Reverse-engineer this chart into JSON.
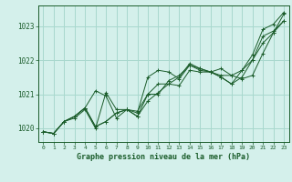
{
  "title": "Graphe pression niveau de la mer (hPa)",
  "bg_color": "#d4f0eb",
  "grid_color": "#a8d8ce",
  "line_color": "#1a5c2a",
  "xlim": [
    -0.5,
    23.5
  ],
  "ylim": [
    1019.6,
    1023.6
  ],
  "yticks": [
    1020,
    1021,
    1022,
    1023
  ],
  "xticks": [
    0,
    1,
    2,
    3,
    4,
    5,
    6,
    7,
    8,
    9,
    10,
    11,
    12,
    13,
    14,
    15,
    16,
    17,
    18,
    19,
    20,
    21,
    22,
    23
  ],
  "series": [
    [
      1019.9,
      1019.85,
      1020.2,
      1020.3,
      1020.55,
      1020.0,
      1021.05,
      1020.55,
      1020.55,
      1020.45,
      1021.5,
      1021.7,
      1021.65,
      1021.45,
      1021.85,
      1021.7,
      1021.65,
      1021.75,
      1021.55,
      1021.7,
      1022.15,
      1022.9,
      1023.05,
      1023.4
    ],
    [
      1019.9,
      1019.85,
      1020.2,
      1020.35,
      1020.6,
      1020.05,
      1020.2,
      1020.45,
      1020.55,
      1020.5,
      1021.0,
      1021.3,
      1021.3,
      1021.5,
      1021.9,
      1021.75,
      1021.65,
      1021.5,
      1021.3,
      1021.5,
      1022.0,
      1022.7,
      1022.85,
      1023.15
    ],
    [
      1019.9,
      1019.85,
      1020.2,
      1020.35,
      1020.6,
      1021.1,
      1020.95,
      1020.3,
      1020.55,
      1020.35,
      1021.0,
      1021.0,
      1021.4,
      1021.55,
      1021.85,
      1021.75,
      1021.65,
      1021.5,
      1021.3,
      1021.7,
      1022.0,
      1022.5,
      1022.8,
      1023.15
    ],
    [
      1019.9,
      1019.85,
      1020.2,
      1020.35,
      1020.6,
      1020.05,
      1020.2,
      1020.45,
      1020.55,
      1020.35,
      1020.8,
      1021.05,
      1021.3,
      1021.25,
      1021.7,
      1021.65,
      1021.65,
      1021.55,
      1021.55,
      1021.45,
      1021.55,
      1022.2,
      1022.8,
      1023.35
    ]
  ]
}
